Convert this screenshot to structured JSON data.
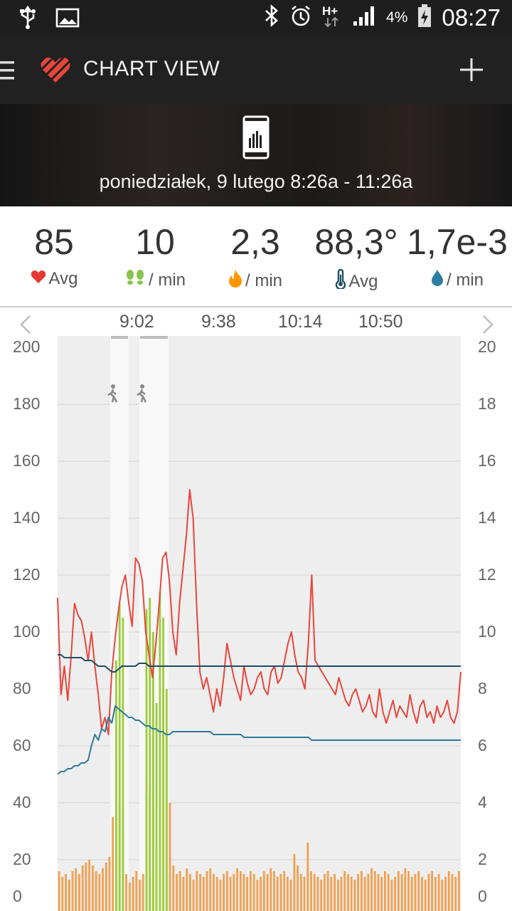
{
  "status_bar": {
    "battery": "4%",
    "time": "08:27",
    "network": "H+",
    "icons": [
      "usb-icon",
      "image-icon",
      "bluetooth-icon",
      "alarm-icon",
      "hplus-icon",
      "signal-icon",
      "battery-icon"
    ]
  },
  "app_bar": {
    "title": "CHART VIEW",
    "icons": [
      "menu-icon",
      "heart-logo-icon",
      "plus-icon"
    ],
    "accent": "#e8463c"
  },
  "hero": {
    "icon": "phone-chart-icon",
    "date_range": "poniedziałek, 9 lutego 8:26a - 11:26a"
  },
  "stats": [
    {
      "value": "85",
      "label": "Avg",
      "icon": "heart-icon",
      "color": "#e53935"
    },
    {
      "value": "10",
      "label": "/ min",
      "icon": "footsteps-icon",
      "color": "#8bc34a"
    },
    {
      "value": "2,3",
      "label": "/ min",
      "icon": "flame-icon",
      "color": "#ff9800"
    },
    {
      "value": "88,3°",
      "label": "Avg",
      "icon": "thermometer-icon",
      "color": "#1e4e63"
    },
    {
      "value": "1,7e-3",
      "label": "/ min",
      "icon": "drop-icon",
      "color": "#2a7fa0"
    }
  ],
  "chart_data": {
    "type": "line",
    "x_ticks": [
      "9:02",
      "9:38",
      "10:14",
      "10:50"
    ],
    "y_left": {
      "ticks": [
        "200",
        "180",
        "160",
        "140",
        "120",
        "100",
        "80",
        "60",
        "40",
        "20",
        "0"
      ],
      "range": [
        0,
        200
      ]
    },
    "y_right": {
      "ticks": [
        "20",
        "18",
        "16",
        "14",
        "12",
        "10",
        "8",
        "6",
        "4",
        "2",
        "0"
      ],
      "range": [
        0,
        20
      ]
    },
    "grid": true,
    "nav": {
      "prev": "chevron-left-icon",
      "next": "chevron-right-icon"
    },
    "activity_markers": [
      "walking-icon",
      "walking-icon"
    ],
    "series": [
      {
        "kind": "line",
        "color": "#e8463c",
        "axis": "left",
        "values": [
          112,
          78,
          88,
          76,
          92,
          110,
          106,
          104,
          98,
          90,
          100,
          88,
          78,
          66,
          70,
          64,
          86,
          98,
          108,
          116,
          120,
          110,
          102,
          126,
          124,
          118,
          100,
          92,
          84,
          96,
          110,
          126,
          128,
          118,
          100,
          92,
          110,
          122,
          134,
          150,
          140,
          110,
          86,
          80,
          84,
          78,
          72,
          80,
          74,
          84,
          96,
          90,
          84,
          80,
          76,
          88,
          82,
          78,
          80,
          84,
          86,
          80,
          78,
          86,
          88,
          82,
          84,
          90,
          96,
          100,
          92,
          86,
          84,
          80,
          96,
          120,
          90,
          88,
          86,
          84,
          82,
          80,
          78,
          84,
          80,
          76,
          74,
          78,
          80,
          76,
          72,
          74,
          78,
          72,
          70,
          80,
          72,
          68,
          72,
          76,
          70,
          74,
          72,
          70,
          78,
          72,
          68,
          74,
          76,
          70,
          72,
          68,
          74,
          70,
          72,
          76,
          70,
          68,
          72,
          86
        ]
      },
      {
        "kind": "line",
        "color": "#1e4e63",
        "axis": "left",
        "values": [
          92,
          92,
          91,
          91,
          91,
          91,
          91,
          91,
          90,
          90,
          90,
          89,
          88,
          88,
          88,
          87,
          86,
          86,
          87,
          88,
          88,
          88,
          88,
          88,
          89,
          89,
          89,
          88,
          88,
          88,
          88,
          88,
          88,
          88,
          88,
          88,
          88,
          88,
          88,
          88,
          88,
          88,
          88,
          88,
          88,
          88,
          88,
          88,
          88,
          88,
          88,
          88,
          88,
          88,
          88,
          88,
          88,
          88,
          88,
          88,
          88,
          88,
          88,
          88,
          88,
          88,
          88,
          88,
          88,
          88,
          88,
          88,
          88,
          88,
          88,
          88,
          88,
          88,
          88,
          88,
          88,
          88,
          88,
          88,
          88,
          88,
          88,
          88,
          88,
          88,
          88,
          88,
          88,
          88,
          88,
          88,
          88,
          88,
          88,
          88,
          88,
          88,
          88,
          88,
          88,
          88,
          88,
          88,
          88,
          88,
          88,
          88,
          88,
          88,
          88,
          88,
          88,
          88,
          88,
          88
        ]
      },
      {
        "kind": "line",
        "color": "#2b7a99",
        "axis": "left",
        "values": [
          50,
          51,
          51,
          52,
          52,
          53,
          53,
          54,
          54,
          55,
          60,
          64,
          62,
          66,
          65,
          70,
          68,
          74,
          73,
          72,
          71,
          70,
          70,
          69,
          69,
          68,
          67,
          67,
          66,
          66,
          65,
          65,
          64,
          64,
          65,
          65,
          65,
          65,
          65,
          65,
          65,
          65,
          65,
          65,
          65,
          65,
          64,
          64,
          64,
          64,
          64,
          64,
          64,
          64,
          64,
          63,
          63,
          63,
          63,
          63,
          63,
          63,
          63,
          63,
          63,
          63,
          63,
          63,
          63,
          63,
          63,
          63,
          63,
          63,
          63,
          62,
          62,
          62,
          62,
          62,
          62,
          62,
          62,
          62,
          62,
          62,
          62,
          62,
          62,
          62,
          62,
          62,
          62,
          62,
          62,
          62,
          62,
          62,
          62,
          62,
          62,
          62,
          62,
          62,
          62,
          62,
          62,
          62,
          62,
          62,
          62,
          62,
          62,
          62,
          62,
          62,
          62,
          62,
          62,
          62
        ]
      },
      {
        "kind": "bar",
        "color": "#f0a050",
        "axis": "right",
        "values": [
          1.6,
          1.4,
          1.5,
          1.3,
          1.6,
          1.7,
          1.5,
          1.8,
          1.9,
          2.0,
          1.8,
          1.6,
          1.5,
          1.7,
          1.9,
          2.1,
          3.5,
          5.5,
          4.0,
          3.0,
          1.5,
          1.2,
          1.4,
          1.6,
          1.3,
          1.5,
          4.8,
          4.2,
          3.8,
          2.4,
          6.0,
          7.5,
          6.5,
          4.0,
          1.8,
          1.5,
          1.6,
          1.4,
          1.7,
          1.5,
          1.3,
          1.6,
          1.5,
          1.4,
          1.6,
          1.7,
          1.5,
          1.4,
          1.3,
          1.5,
          1.6,
          1.4,
          1.5,
          1.7,
          1.6,
          1.5,
          1.4,
          1.6,
          1.5,
          1.3,
          1.4,
          1.6,
          1.5,
          1.7,
          1.6,
          1.4,
          1.5,
          1.6,
          1.4,
          1.3,
          2.2,
          1.8,
          1.5,
          1.4,
          2.6,
          1.6,
          1.5,
          1.4,
          1.3,
          1.5,
          1.6,
          1.4,
          1.5,
          1.3,
          1.4,
          1.6,
          1.5,
          1.4,
          1.3,
          1.5,
          1.6,
          1.4,
          1.5,
          1.7,
          1.6,
          1.5,
          1.4,
          1.6,
          1.5,
          1.3,
          1.4,
          1.6,
          1.5,
          1.7,
          1.6,
          1.4,
          1.5,
          1.6,
          1.4,
          1.3,
          1.5,
          1.6,
          1.4,
          1.5,
          1.3,
          1.4,
          1.6,
          1.5,
          1.4,
          1.6
        ]
      },
      {
        "kind": "bar",
        "color": "#9ccc3c",
        "axis": "right",
        "values": [
          0,
          0,
          0,
          0,
          0,
          0,
          0,
          0,
          0,
          0,
          0,
          0,
          0,
          0,
          0,
          0,
          0,
          9.0,
          11.0,
          10.5,
          0,
          0,
          0,
          0,
          0,
          0,
          10.8,
          11.2,
          10.0,
          7.5,
          11.4,
          10.5,
          8.0,
          0,
          0,
          0,
          0,
          0,
          0,
          0,
          0,
          0,
          0,
          0,
          0,
          0,
          0,
          0,
          0,
          0,
          0,
          0,
          0,
          0,
          0,
          0,
          0,
          0,
          0,
          0,
          0,
          0,
          0,
          0,
          0,
          0,
          0,
          0,
          0,
          0,
          0,
          0,
          0,
          0,
          0,
          0,
          0,
          0,
          0,
          0,
          0,
          0,
          0,
          0,
          0,
          0,
          0,
          0,
          0,
          0,
          0,
          0,
          0,
          0,
          0,
          0,
          0,
          0,
          0,
          0,
          0,
          0,
          0,
          0,
          0,
          0,
          0,
          0,
          0,
          0,
          0,
          0,
          0,
          0,
          0,
          0,
          0,
          0,
          0,
          0
        ]
      }
    ]
  }
}
